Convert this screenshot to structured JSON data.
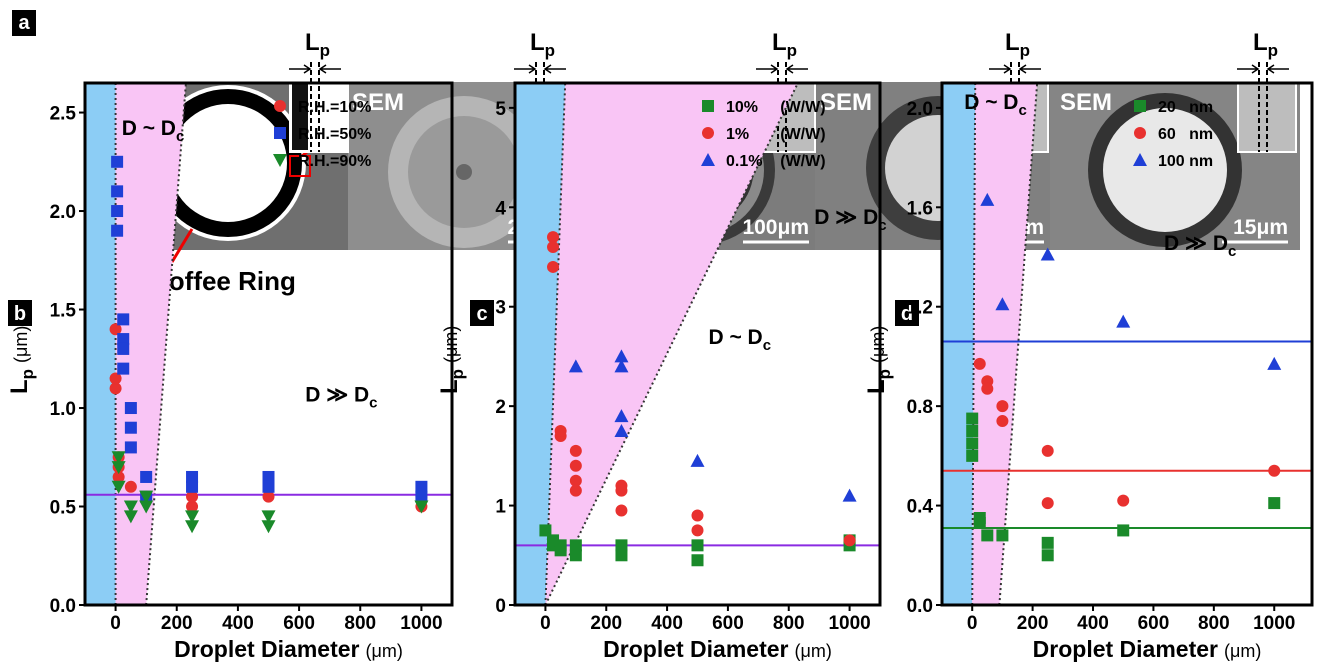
{
  "panel_a": {
    "letter": "a",
    "lp": {
      "main": "L",
      "sub": "p"
    },
    "sem": "SEM",
    "scale_bars": [
      "200μm",
      "100μm",
      "25μm",
      "15μm"
    ],
    "annotation": "Coffee Ring"
  },
  "chart_data": [
    {
      "type": "scatter",
      "letter": "b",
      "xlabel": {
        "main": "Droplet Diameter",
        "unit": "(μm)"
      },
      "ylabel": {
        "main": "L",
        "sub": "p",
        "unit": "(μm)"
      },
      "xlim": [
        -100,
        1100
      ],
      "ylim": [
        0,
        2.65
      ],
      "xticks": [
        0,
        200,
        400,
        600,
        800,
        1000
      ],
      "yticks": [
        {
          "value": 0,
          "label": "0.0"
        },
        0.5,
        {
          "value": 1,
          "label": "1.0"
        },
        1.5,
        {
          "value": 2,
          "label": "2.0"
        },
        2.5
      ],
      "regions": [
        {
          "color": "#8ccdf5",
          "points": [
            [
              -100,
              0
            ],
            [
              0,
              0
            ],
            [
              0,
              2.65
            ],
            [
              -100,
              2.65
            ]
          ]
        },
        {
          "color": "#f9c5f5",
          "points": [
            [
              0,
              0
            ],
            [
              100,
              0
            ],
            [
              230,
              2.65
            ],
            [
              0,
              2.65
            ]
          ]
        }
      ],
      "boundaries": [
        [
          [
            0,
            0
          ],
          [
            0,
            2.65
          ]
        ],
        [
          [
            100,
            0
          ],
          [
            230,
            2.65
          ]
        ]
      ],
      "hlines": [
        {
          "value": 0.56,
          "color": "#8a2be2"
        }
      ],
      "annotations": [
        {
          "text": "D ~ D",
          "sub": "c"
        },
        {
          "text": "D ≫ D",
          "sub": "c"
        }
      ],
      "legend": "upper right",
      "series": [
        {
          "name": "R.H.=10%",
          "color": "#e8312f",
          "marker": "circle",
          "x": [
            0,
            0,
            0,
            10,
            10,
            10,
            50,
            100,
            250,
            250,
            500,
            1000,
            1000
          ],
          "values": [
            1.1,
            1.15,
            1.4,
            0.65,
            0.7,
            0.75,
            0.6,
            0.55,
            0.5,
            0.55,
            0.55,
            0.5,
            0.55
          ]
        },
        {
          "name": "R.H.=50%",
          "color": "#1f3fd6",
          "marker": "square",
          "x": [
            5,
            5,
            5,
            5,
            25,
            25,
            25,
            25,
            50,
            50,
            50,
            100,
            100,
            250,
            250,
            500,
            500,
            1000,
            1000
          ],
          "values": [
            2.25,
            2.1,
            2.0,
            1.9,
            1.45,
            1.35,
            1.3,
            1.2,
            1.0,
            0.9,
            0.8,
            0.65,
            0.55,
            0.65,
            0.6,
            0.65,
            0.6,
            0.6,
            0.55
          ]
        },
        {
          "name": "R.H.=90%",
          "color": "#1a8a2a",
          "marker": "triangle-down",
          "x": [
            10,
            10,
            10,
            50,
            50,
            100,
            100,
            250,
            250,
            500,
            500,
            1000
          ],
          "values": [
            0.75,
            0.7,
            0.6,
            0.5,
            0.45,
            0.5,
            0.55,
            0.45,
            0.4,
            0.45,
            0.4,
            0.5
          ]
        }
      ]
    },
    {
      "type": "scatter",
      "letter": "c",
      "xlabel": {
        "main": "Droplet Diameter",
        "unit": "(μm)"
      },
      "ylabel": {
        "main": "L",
        "sub": "p",
        "unit": "(μm)"
      },
      "xlim": [
        -100,
        1100
      ],
      "ylim": [
        0,
        5.25
      ],
      "xticks": [
        0,
        200,
        400,
        600,
        800,
        1000
      ],
      "yticks": [
        0,
        1,
        2,
        3,
        4,
        5
      ],
      "regions": [
        {
          "color": "#8ccdf5",
          "points": [
            [
              -100,
              0
            ],
            [
              0,
              0
            ],
            [
              65,
              5.25
            ],
            [
              -100,
              5.25
            ]
          ]
        },
        {
          "color": "#f9c5f5",
          "points": [
            [
              0,
              0
            ],
            [
              830,
              5.25
            ],
            [
              65,
              5.25
            ]
          ]
        }
      ],
      "boundaries": [
        [
          [
            0,
            0
          ],
          [
            65,
            5.25
          ]
        ],
        [
          [
            0,
            0
          ],
          [
            830,
            5.25
          ]
        ]
      ],
      "hlines": [
        {
          "value": 0.6,
          "color": "#8a2be2"
        }
      ],
      "annotations": [
        {
          "text": "D ~ D",
          "sub": "c"
        },
        {
          "text": "D ≫ D",
          "sub": "c"
        }
      ],
      "legend": "upper right",
      "series": [
        {
          "name": "10%     (W/W)",
          "color": "#1a8a2a",
          "marker": "square",
          "x": [
            0,
            25,
            25,
            50,
            50,
            100,
            100,
            250,
            250,
            500,
            500,
            1000,
            1000
          ],
          "values": [
            0.75,
            0.6,
            0.65,
            0.55,
            0.6,
            0.5,
            0.6,
            0.5,
            0.6,
            0.45,
            0.6,
            0.6,
            0.65
          ]
        },
        {
          "name": "1%       (W/W)",
          "color": "#e8312f",
          "marker": "circle",
          "x": [
            25,
            25,
            25,
            50,
            50,
            100,
            100,
            100,
            100,
            250,
            250,
            250,
            500,
            500,
            1000
          ],
          "values": [
            3.7,
            3.6,
            3.4,
            1.7,
            1.75,
            1.55,
            1.4,
            1.25,
            1.15,
            1.2,
            1.15,
            0.95,
            0.9,
            0.75,
            0.65
          ]
        },
        {
          "name": "0.1%    (W/W)",
          "color": "#1f3fd6",
          "marker": "triangle",
          "x": [
            100,
            250,
            250,
            250,
            250,
            500,
            1000
          ],
          "values": [
            2.4,
            2.5,
            2.4,
            1.9,
            1.75,
            1.45,
            1.1
          ]
        }
      ]
    },
    {
      "type": "scatter",
      "letter": "d",
      "xlabel": {
        "main": "Droplet Diameter",
        "unit": "(μm)"
      },
      "ylabel": {
        "main": "L",
        "sub": "p",
        "unit": "(μm)"
      },
      "xlim": [
        -100,
        1125
      ],
      "ylim": [
        0,
        2.1
      ],
      "xticks": [
        0,
        200,
        400,
        600,
        800,
        1000
      ],
      "yticks": [
        {
          "value": 0,
          "label": "0.0"
        },
        0.4,
        0.8,
        1.2,
        1.6,
        {
          "value": 2,
          "label": "2.0"
        }
      ],
      "regions": [
        {
          "color": "#8ccdf5",
          "points": [
            [
              -100,
              0
            ],
            [
              0,
              0
            ],
            [
              10,
              2.1
            ],
            [
              -100,
              2.1
            ]
          ]
        },
        {
          "color": "#f9c5f5",
          "points": [
            [
              0,
              0
            ],
            [
              90,
              0
            ],
            [
              215,
              2.1
            ],
            [
              10,
              2.1
            ]
          ]
        }
      ],
      "boundaries": [
        [
          [
            0,
            0
          ],
          [
            10,
            2.1
          ]
        ],
        [
          [
            90,
            0
          ],
          [
            215,
            2.1
          ]
        ]
      ],
      "hlines": [
        {
          "value": 1.06,
          "color": "#1f3fd6"
        },
        {
          "value": 0.54,
          "color": "#e8312f"
        },
        {
          "value": 0.31,
          "color": "#1a8a2a"
        }
      ],
      "annotations": [
        {
          "text": "D ~ D",
          "sub": "c"
        },
        {
          "text": "D ≫ D",
          "sub": "c"
        }
      ],
      "legend": "upper right",
      "series": [
        {
          "name": "20   nm",
          "color": "#1a8a2a",
          "marker": "square",
          "x": [
            0,
            0,
            0,
            0,
            25,
            25,
            50,
            100,
            250,
            250,
            500,
            1000
          ],
          "values": [
            0.75,
            0.7,
            0.65,
            0.6,
            0.35,
            0.33,
            0.28,
            0.28,
            0.25,
            0.2,
            0.3,
            0.41
          ]
        },
        {
          "name": "60   nm",
          "color": "#e8312f",
          "marker": "circle",
          "x": [
            25,
            50,
            50,
            100,
            100,
            250,
            250,
            500,
            1000
          ],
          "values": [
            0.97,
            0.9,
            0.87,
            0.8,
            0.74,
            0.62,
            0.41,
            0.42,
            0.54
          ]
        },
        {
          "name": "100 nm",
          "color": "#1f3fd6",
          "marker": "triangle",
          "x": [
            50,
            100,
            250,
            500,
            1000
          ],
          "values": [
            1.63,
            1.21,
            1.41,
            1.14,
            0.97
          ]
        }
      ]
    }
  ]
}
